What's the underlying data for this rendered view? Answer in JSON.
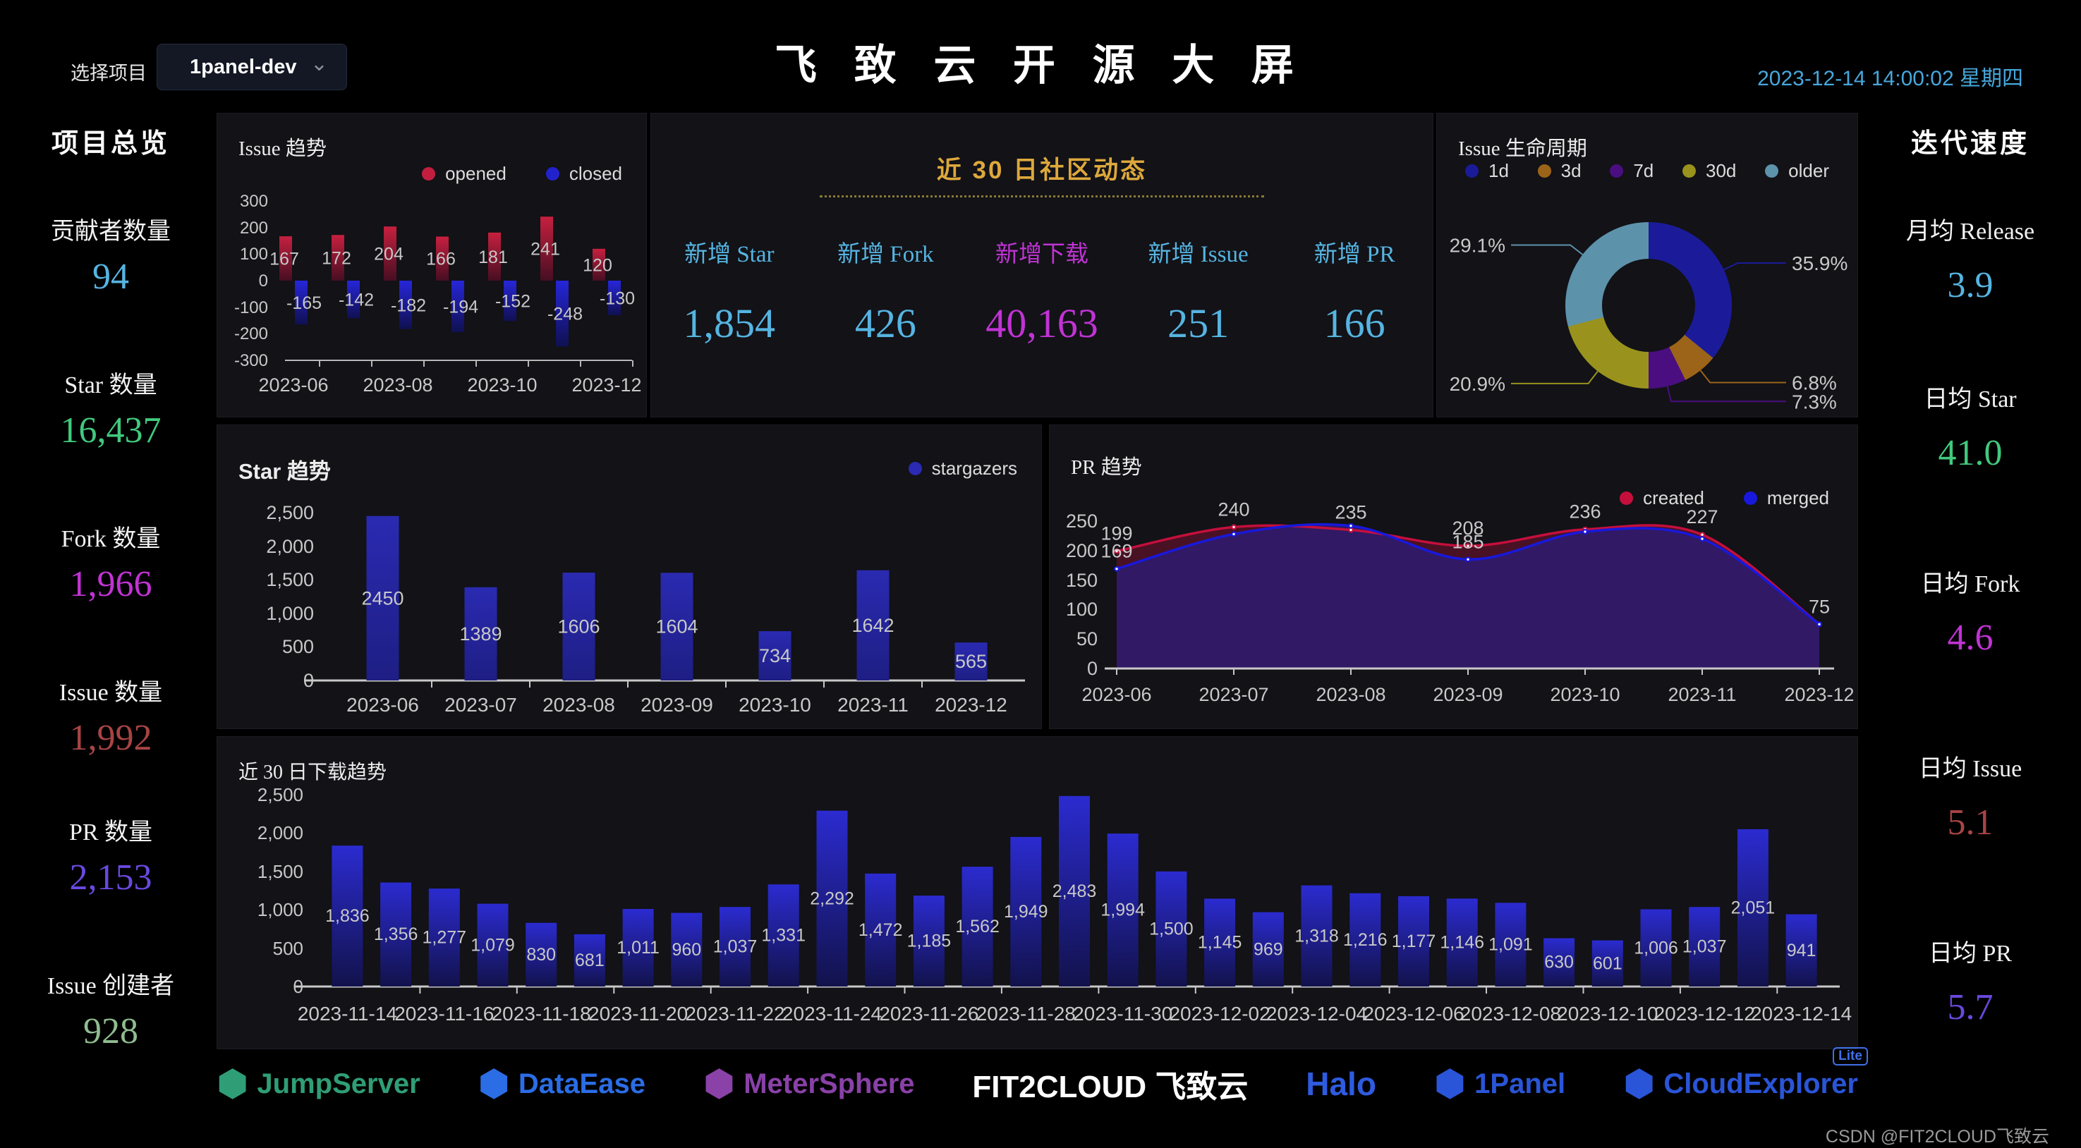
{
  "topbar": {
    "project_label": "选择项目",
    "project_value": "1panel-dev",
    "dropdown_icon": "⌄",
    "title": "飞 致 云 开 源 大 屏",
    "datetime": "2023-12-14 14:00:02 星期四"
  },
  "left_panel": {
    "title": "项目总览",
    "stats": [
      {
        "label": "贡献者数量",
        "value": "94",
        "color": "#56b4e1"
      },
      {
        "label": "Star 数量",
        "value": "16,437",
        "color": "#41c97d"
      },
      {
        "label": "Fork 数量",
        "value": "1,966",
        "color": "#c133d4"
      },
      {
        "label": "Issue 数量",
        "value": "1,992",
        "color": "#a84444"
      },
      {
        "label": "PR 数量",
        "value": "2,153",
        "color": "#6a49e0"
      },
      {
        "label": "Issue 创建者",
        "value": "928",
        "color": "#8fbc8f"
      }
    ]
  },
  "right_panel": {
    "title": "迭代速度",
    "stats": [
      {
        "label": "月均 Release",
        "value": "3.9",
        "color": "#56b4e1"
      },
      {
        "label": "日均 Star",
        "value": "41.0",
        "color": "#41c97d"
      },
      {
        "label": "日均 Fork",
        "value": "4.6",
        "color": "#c133d4"
      },
      {
        "label": "日均 Issue",
        "value": "5.1",
        "color": "#a84444"
      },
      {
        "label": "日均 PR",
        "value": "5.7",
        "color": "#6a49e0"
      }
    ]
  },
  "community": {
    "title": "近 30 日社区动态",
    "stats": [
      {
        "label": "新增 Star",
        "value": "1,854",
        "color": "#56b4e1"
      },
      {
        "label": "新增 Fork",
        "value": "426",
        "color": "#56b4e1"
      },
      {
        "label": "新增下载",
        "value": "40,163",
        "color": "#c133d4"
      },
      {
        "label": "新增 Issue",
        "value": "251",
        "color": "#56b4e1"
      },
      {
        "label": "新增 PR",
        "value": "166",
        "color": "#56b4e1"
      }
    ]
  },
  "chart_data": [
    {
      "id": "issue_trend",
      "type": "bar",
      "title": "Issue 趋势",
      "categories": [
        "2023-06",
        "2023-07",
        "2023-08",
        "2023-09",
        "2023-10",
        "2023-11",
        "2023-12"
      ],
      "x_tick_labels": [
        "2023-06",
        "2023-08",
        "2023-10",
        "2023-12"
      ],
      "series": [
        {
          "name": "opened",
          "color": "#c41e3e",
          "values": [
            167,
            172,
            204,
            166,
            181,
            241,
            120
          ]
        },
        {
          "name": "closed",
          "color": "#2222cc",
          "values": [
            -165,
            -142,
            -182,
            -194,
            -152,
            -248,
            -130
          ]
        }
      ],
      "ylim": [
        -300,
        300
      ],
      "ytick_step": 100
    },
    {
      "id": "lifecycle",
      "type": "pie",
      "title": "Issue 生命周期",
      "labels": [
        "1d",
        "3d",
        "7d",
        "30d",
        "older"
      ],
      "values": [
        35.9,
        6.8,
        7.3,
        20.9,
        29.1
      ],
      "unit": "%",
      "colors": [
        "#1b1b9a",
        "#9c6418",
        "#4a0e80",
        "#99931d",
        "#5d92ab"
      ]
    },
    {
      "id": "star_trend",
      "type": "bar",
      "title": "Star 趋势",
      "legend": [
        "stargazers"
      ],
      "legend_color": "#2a2ab2",
      "categories": [
        "2023-06",
        "2023-07",
        "2023-08",
        "2023-09",
        "2023-10",
        "2023-11",
        "2023-12"
      ],
      "values": [
        2450,
        1389,
        1606,
        1604,
        734,
        1642,
        565
      ],
      "ylim": [
        0,
        2500
      ],
      "ytick_step": 500
    },
    {
      "id": "pr_trend",
      "type": "line",
      "title": "PR 趋势",
      "categories": [
        "2023-06",
        "2023-07",
        "2023-08",
        "2023-09",
        "2023-10",
        "2023-11",
        "2023-12"
      ],
      "series": [
        {
          "name": "created",
          "color": "#c40f3c",
          "values": [
            199,
            240,
            235,
            208,
            236,
            227,
            75
          ],
          "labeled": [
            true,
            true,
            true,
            true,
            true,
            true,
            false
          ]
        },
        {
          "name": "merged",
          "color": "#1818dc",
          "values": [
            169,
            228,
            242,
            185,
            232,
            220,
            75
          ],
          "labeled": [
            true,
            false,
            false,
            true,
            false,
            false,
            true
          ]
        }
      ],
      "ylim": [
        0,
        250
      ],
      "ytick_step": 50
    },
    {
      "id": "downloads",
      "type": "bar",
      "title": "近 30 日下载趋势",
      "categories": [
        "2023-11-14",
        "2023-11-15",
        "2023-11-16",
        "2023-11-17",
        "2023-11-18",
        "2023-11-19",
        "2023-11-20",
        "2023-11-21",
        "2023-11-22",
        "2023-11-23",
        "2023-11-24",
        "2023-11-25",
        "2023-11-26",
        "2023-11-27",
        "2023-11-28",
        "2023-11-29",
        "2023-11-30",
        "2023-12-01",
        "2023-12-02",
        "2023-12-03",
        "2023-12-04",
        "2023-12-05",
        "2023-12-06",
        "2023-12-07",
        "2023-12-08",
        "2023-12-09",
        "2023-12-10",
        "2023-12-11",
        "2023-12-12",
        "2023-12-13",
        "2023-12-14"
      ],
      "values": [
        1836,
        1356,
        1277,
        1079,
        830,
        681,
        1011,
        960,
        1037,
        1331,
        2292,
        1472,
        1185,
        1562,
        1949,
        2483,
        1994,
        1500,
        1145,
        969,
        1318,
        1216,
        1177,
        1146,
        1091,
        630,
        601,
        1006,
        1037,
        2051,
        941
      ],
      "ylim": [
        0,
        2500
      ],
      "ytick_step": 500
    }
  ],
  "logos": [
    {
      "name": "JumpServer",
      "color": "#2f9e77",
      "icon_glyph": "⬢"
    },
    {
      "name": "DataEase",
      "color": "#2b6de5",
      "icon_glyph": "⬢"
    },
    {
      "name": "MeterSphere",
      "color": "#8a41a8",
      "icon_glyph": "⬢"
    },
    {
      "name": "FIT2CLOUD 飞致云",
      "color": "#ffffff",
      "icon_glyph": ""
    },
    {
      "name": "Halo",
      "color": "#2e5be0",
      "icon_glyph": ""
    },
    {
      "name": "1Panel",
      "color": "#2a55d8",
      "icon_glyph": "⬢"
    },
    {
      "name": "CloudExplorer",
      "color": "#2a55d8",
      "icon_glyph": "⬢",
      "badge": "Lite"
    }
  ],
  "watermark": "CSDN @FIT2CLOUD飞致云"
}
